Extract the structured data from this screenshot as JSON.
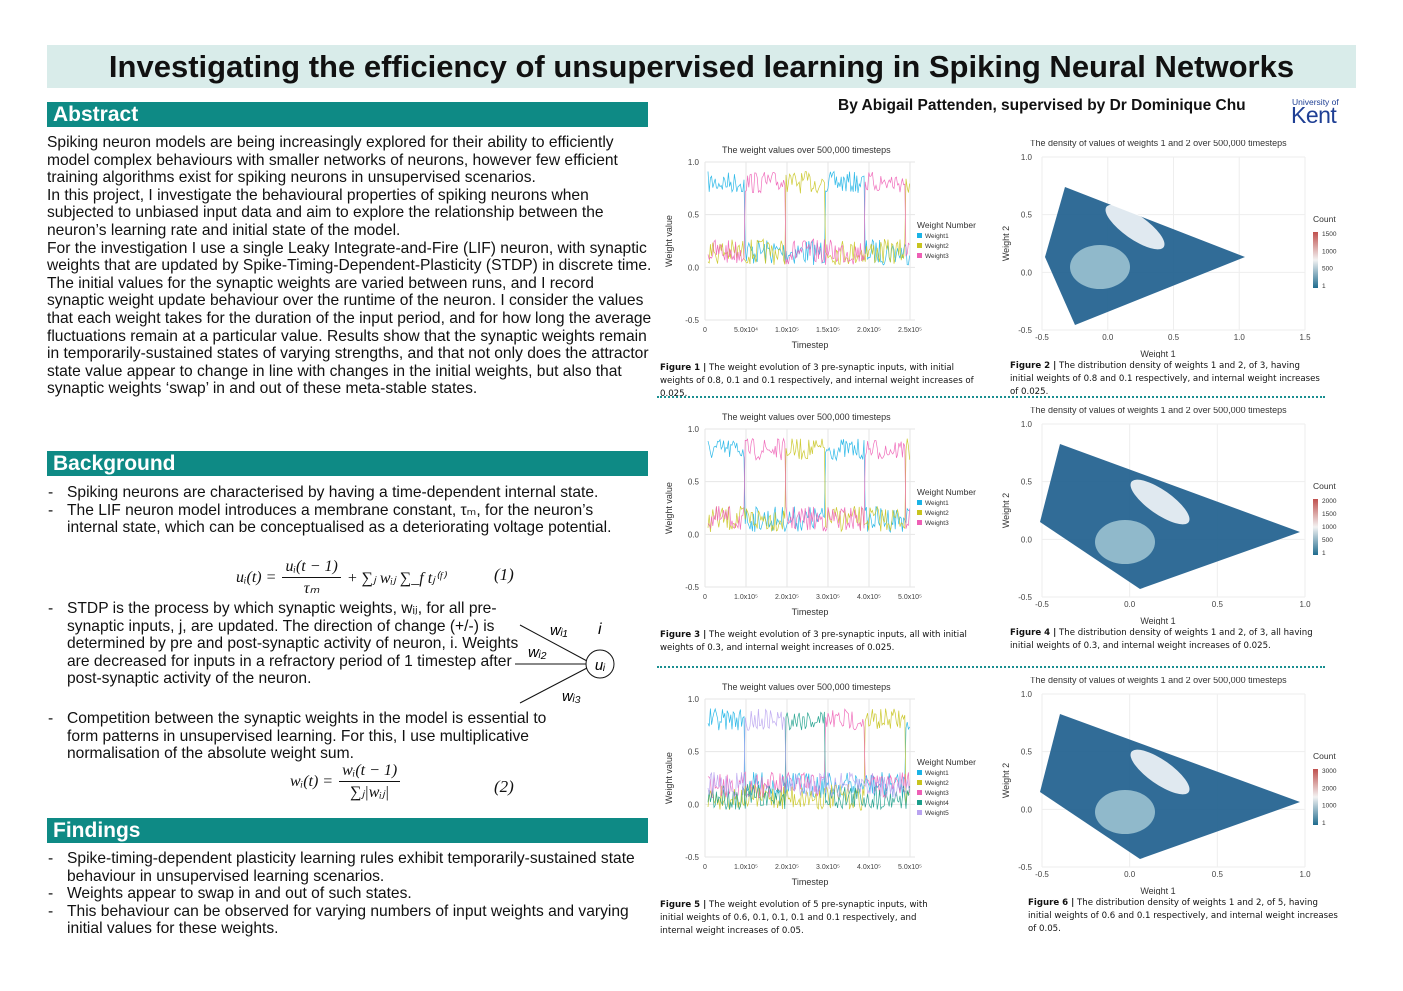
{
  "header": {
    "title": "Investigating the efficiency of unsupervised learning in Spiking Neural Networks",
    "author": "By Abigail Pattenden, supervised by Dr Dominique Chu",
    "logo_small": "University of",
    "logo_big": "Kent"
  },
  "abstract": {
    "heading": "Abstract",
    "paragraphs": [
      "Spiking neuron models are being increasingly explored for their ability to efficiently model complex behaviours with smaller networks of neurons, however few efficient training algorithms exist for spiking neurons in unsupervised scenarios.",
      "In this project, I investigate the behavioural properties of spiking neurons when subjected to unbiased input data and aim to explore the relationship between the neuron’s learning rate and initial state of the model.",
      "For the investigation I use a single Leaky Integrate-and-Fire (LIF) neuron, with synaptic weights that are updated by Spike-Timing-Dependent-Plasticity (STDP) in discrete time. The initial values for the synaptic weights are varied between runs, and I record synaptic weight update behaviour over the runtime of the neuron. I consider the values that each weight takes for the duration of the input period, and for how long the average fluctuations remain at a particular value. Results show that the synaptic weights remain in temporarily-sustained states of varying strengths, and that not only does the attractor state value appear to change in line with changes in the initial weights, but also that synaptic weights ‘swap’ in and out of these meta-stable states."
    ]
  },
  "background": {
    "heading": "Background",
    "bullets": [
      "Spiking neurons are characterised by having a time-dependent internal state.",
      "The LIF neuron model introduces a membrane constant, τₘ, for the neuron’s internal state, which can be conceptualised as a deteriorating voltage potential.",
      "STDP is the process by which synaptic weights, wᵢⱼ, for all pre-synaptic inputs, j, are updated. The direction of change (+/-) is determined by pre and post-synaptic activity of neuron, i. Weights are decreased for inputs in a refractory period of 1 timestep after post-synaptic activity of the neuron.",
      "Competition between the synaptic weights in the model is essential to form patterns in unsupervised learning. For this, I use multiplicative normalisation of the absolute weight sum."
    ],
    "equation1": {
      "lhs": "uᵢ(t) =",
      "numerator": "uᵢ(t − 1)",
      "denominator": "τₘ",
      "rest": "+ ∑ⱼ wᵢⱼ ∑_f tⱼ⁽ᶠ⁾",
      "number": "(1)"
    },
    "equation2": {
      "lhs": "wᵢ(t) =",
      "numerator": "wᵢ(t − 1)",
      "denominator": "∑ⱼ|wᵢⱼ|",
      "number": "(2)"
    },
    "diagram": {
      "neuron": "i",
      "node": "uᵢ",
      "inputs": [
        "wᵢ₁",
        "wᵢ₂",
        "wᵢ₃"
      ]
    }
  },
  "findings": {
    "heading": "Findings",
    "bullets": [
      "Spike-timing-dependent plasticity learning rules exhibit temporarily-sustained state behaviour in unsupervised learning scenarios.",
      "Weights appear to swap in and out of such states.",
      "This behaviour can be observed for varying numbers of input weights and varying initial values for these weights."
    ]
  },
  "figures": [
    {
      "kind": "line",
      "title": "The weight values over 500,000 timesteps",
      "x_label": "Timestep",
      "y_label": "Weight value",
      "yticks": [
        "1.0",
        "0.5",
        "0.0",
        "-0.5"
      ],
      "xticks": [
        "0",
        "5.0x10⁴",
        "1.0x10⁵",
        "1.5x10⁵",
        "2.0x10⁵",
        "2.5x10⁵"
      ],
      "legend_title": "Weight Number",
      "legend": [
        {
          "name": "Weight1",
          "color": "#1ab3e6"
        },
        {
          "name": "Weight2",
          "color": "#c8c41e"
        },
        {
          "name": "Weight3",
          "color": "#ee5fb5"
        }
      ],
      "caption_label": "Figure 1 |",
      "caption": "The weight evolution of 3 pre-synaptic inputs, with initial weights of 0.8, 0.1 and 0.1 respectively, and internal weight increases of 0.025."
    },
    {
      "kind": "density",
      "title": "The density of values of weights 1 and 2 over 500,000 timesteps",
      "x_label": "Weight 1",
      "y_label": "Weight 2",
      "yticks": [
        "1.0",
        "0.5",
        "0.0",
        "-0.5"
      ],
      "xticks": [
        "-0.5",
        "0.0",
        "0.5",
        "1.0",
        "1.5"
      ],
      "legend_title": "Count",
      "legend": [
        "1500",
        "1000",
        "500",
        "1"
      ],
      "caption_label": "Figure 2 |",
      "caption": "The distribution density of weights 1 and 2, of 3, having initial weights of 0.8 and 0.1 respectively, and internal weight increases of 0.025."
    },
    {
      "kind": "line",
      "title": "The weight values over 500,000 timesteps",
      "x_label": "Timestep",
      "y_label": "Weight value",
      "yticks": [
        "1.0",
        "0.5",
        "0.0",
        "-0.5"
      ],
      "xticks": [
        "0",
        "1.0x10⁵",
        "2.0x10⁵",
        "3.0x10⁵",
        "4.0x10⁵",
        "5.0x10⁵"
      ],
      "legend_title": "Weight Number",
      "legend": [
        {
          "name": "Weight1",
          "color": "#1ab3e6"
        },
        {
          "name": "Weight2",
          "color": "#c8c41e"
        },
        {
          "name": "Weight3",
          "color": "#ee5fb5"
        }
      ],
      "caption_label": "Figure 3 |",
      "caption": "The weight evolution of 3 pre-synaptic inputs, all with initial weights of 0.3, and internal weight increases of 0.025."
    },
    {
      "kind": "density",
      "title": "The density of values of weights 1 and 2 over 500,000 timesteps",
      "x_label": "Weight 1",
      "y_label": "Weight 2",
      "yticks": [
        "1.0",
        "0.5",
        "0.0",
        "-0.5"
      ],
      "xticks": [
        "-0.5",
        "0.0",
        "0.5",
        "1.0"
      ],
      "legend_title": "Count",
      "legend": [
        "2000",
        "1500",
        "1000",
        "500",
        "1"
      ],
      "caption_label": "Figure 4 |",
      "caption": "The distribution density of weights 1 and 2, of 3, all having initial weights of 0.3, and internal weight increases of 0.025."
    },
    {
      "kind": "line",
      "title": "The weight values over 500,000 timesteps",
      "x_label": "Timestep",
      "y_label": "Weight value",
      "yticks": [
        "1.0",
        "0.5",
        "0.0",
        "-0.5"
      ],
      "xticks": [
        "0",
        "1.0x10⁵",
        "2.0x10⁵",
        "3.0x10⁵",
        "4.0x10⁵",
        "5.0x10⁵"
      ],
      "legend_title": "Weight Number",
      "legend": [
        {
          "name": "Weight1",
          "color": "#1ab3e6"
        },
        {
          "name": "Weight2",
          "color": "#c8c41e"
        },
        {
          "name": "Weight3",
          "color": "#ee5fb5"
        },
        {
          "name": "Weight4",
          "color": "#1a9e8a"
        },
        {
          "name": "Weight5",
          "color": "#b9a3f0"
        }
      ],
      "caption_label": "Figure 5 |",
      "caption": "The weight evolution of 5 pre-synaptic inputs, with initial weights of 0.6, 0.1, 0.1, 0.1 and 0.1 respectively, and internal weight increases of 0.05."
    },
    {
      "kind": "density",
      "title": "The density of values of weights 1 and 2 over 500,000 timesteps",
      "x_label": "Weight 1",
      "y_label": "Weight 2",
      "yticks": [
        "1.0",
        "0.5",
        "0.0",
        "-0.5"
      ],
      "xticks": [
        "-0.5",
        "0.0",
        "0.5",
        "1.0"
      ],
      "legend_title": "Count",
      "legend": [
        "3000",
        "2000",
        "1000",
        "1"
      ],
      "caption_label": "Figure 6 |",
      "caption": "The distribution density of weights 1 and 2, of 5, having initial weights of 0.6 and 0.1 respectively, and internal weight increases of 0.05."
    }
  ]
}
